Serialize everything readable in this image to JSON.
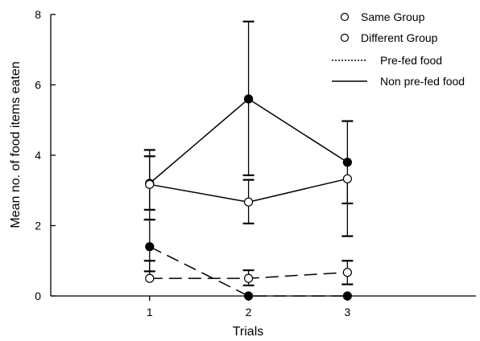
{
  "chart_data": {
    "type": "line",
    "xlabel": "Trials",
    "ylabel": "Mean no. of food items eaten",
    "x": [
      1,
      2,
      3
    ],
    "xlim": [
      0,
      4.3
    ],
    "ylim": [
      0,
      8
    ],
    "yticks": [
      0,
      2,
      4,
      6,
      8
    ],
    "xticks": [
      1,
      2,
      3
    ],
    "legend_position": "top-right",
    "legend": [
      {
        "label": "Same Group",
        "marker": "open-circle"
      },
      {
        "label": "Different Group",
        "marker": "open-circle"
      },
      {
        "label": "Pre-fed food",
        "line": "dotted"
      },
      {
        "label": "Non pre-fed food",
        "line": "solid"
      }
    ],
    "series": [
      {
        "marker": "filled",
        "dash": "solid",
        "values": [
          3.2,
          5.6,
          3.8
        ],
        "err_upper": [
          4.15,
          7.8,
          4.97
        ],
        "err_lower": [
          2.17,
          3.43,
          2.63
        ]
      },
      {
        "marker": "open",
        "dash": "solid",
        "values": [
          3.17,
          2.67,
          3.33
        ],
        "err_upper": [
          3.97,
          3.3,
          3.33
        ],
        "err_lower": [
          2.45,
          2.06,
          1.7
        ]
      },
      {
        "marker": "filled",
        "dash": "dashed",
        "values": [
          1.4,
          0,
          0
        ],
        "err_upper": [
          2.17,
          0,
          0
        ],
        "err_lower": [
          0.7,
          0,
          0
        ]
      },
      {
        "marker": "open",
        "dash": "dashed",
        "values": [
          0.5,
          0.5,
          0.67
        ],
        "err_upper": [
          1.0,
          0.73,
          1.0
        ],
        "err_lower": [
          0.5,
          0.3,
          0.33
        ]
      }
    ]
  }
}
